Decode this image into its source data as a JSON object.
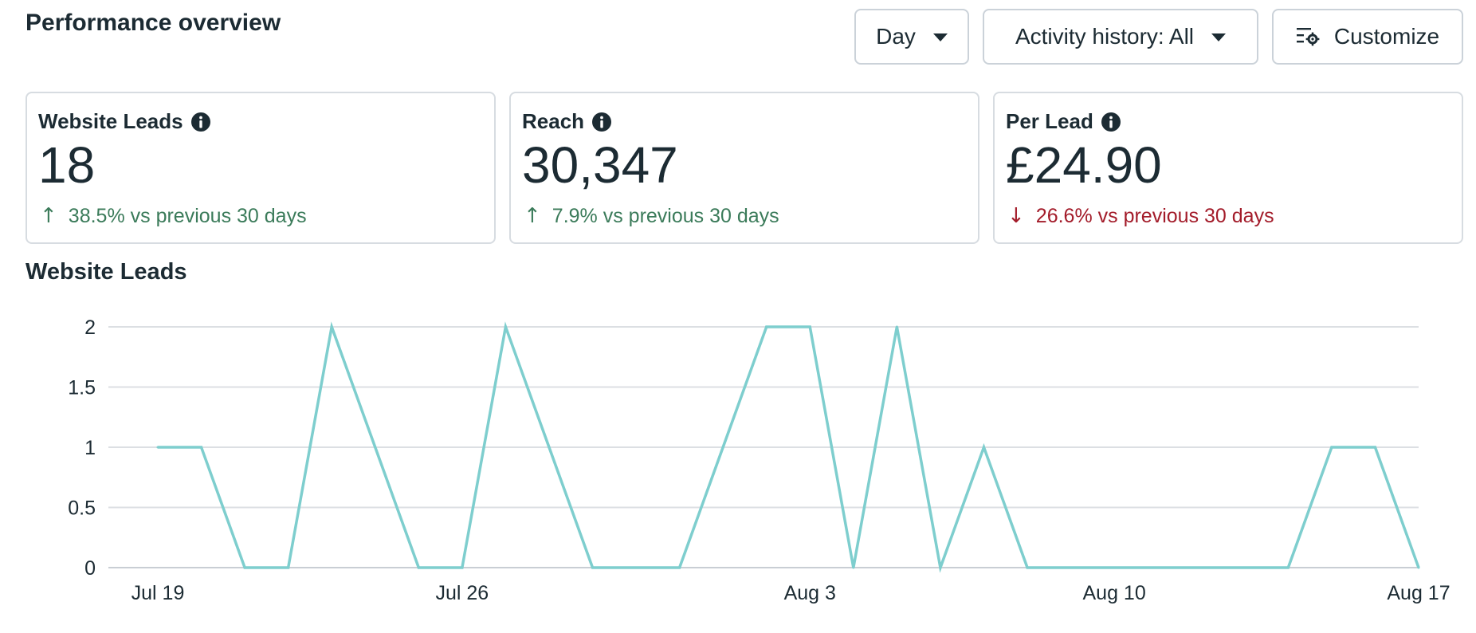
{
  "header": {
    "title": "Performance overview",
    "day_label": "Day",
    "activity_label": "Activity history: All",
    "customize_label": "Customize"
  },
  "cards": [
    {
      "label": "Website Leads",
      "value": "18",
      "change": "38.5% vs previous 30 days",
      "direction": "up",
      "icon": "info-icon"
    },
    {
      "label": "Reach",
      "value": "30,347",
      "change": "7.9% vs previous 30 days",
      "direction": "up",
      "icon": "info-icon"
    },
    {
      "label": "Per Lead",
      "value": "£24.90",
      "change": "26.6% vs previous 30 days",
      "direction": "down",
      "icon": "info-icon"
    }
  ],
  "colors": {
    "up": "#3b7b5a",
    "down": "#a31c2a",
    "line": "#7ecece",
    "grid": "#dcdfe3"
  },
  "chart_data": {
    "type": "line",
    "title": "Website Leads",
    "xlabel": "",
    "ylabel": "",
    "ylim": [
      0,
      2
    ],
    "yticks": [
      "0",
      "0.5",
      "1",
      "1.5",
      "2"
    ],
    "ytick_values": [
      0,
      0.5,
      1,
      1.5,
      2
    ],
    "xticks": [
      {
        "label": "Jul 19",
        "index": 0
      },
      {
        "label": "Jul 26",
        "index": 7
      },
      {
        "label": "Aug 3",
        "index": 15
      },
      {
        "label": "Aug 10",
        "index": 22
      },
      {
        "label": "Aug 17",
        "index": 29
      }
    ],
    "x": [
      "Jul 19",
      "Jul 20",
      "Jul 21",
      "Jul 22",
      "Jul 23",
      "Jul 24",
      "Jul 25",
      "Jul 26",
      "Jul 27",
      "Jul 28",
      "Jul 29",
      "Jul 30",
      "Jul 31",
      "Aug 1",
      "Aug 2",
      "Aug 3",
      "Aug 4",
      "Aug 5",
      "Aug 6",
      "Aug 7",
      "Aug 8",
      "Aug 9",
      "Aug 10",
      "Aug 11",
      "Aug 12",
      "Aug 13",
      "Aug 14",
      "Aug 15",
      "Aug 16",
      "Aug 17"
    ],
    "series": [
      {
        "name": "Website Leads",
        "values": [
          1,
          1,
          0,
          0,
          2,
          1,
          0,
          0,
          2,
          1,
          0,
          0,
          0,
          1,
          2,
          2,
          0,
          2,
          0,
          1,
          0,
          0,
          0,
          0,
          0,
          0,
          0,
          1,
          1,
          0
        ]
      }
    ]
  }
}
